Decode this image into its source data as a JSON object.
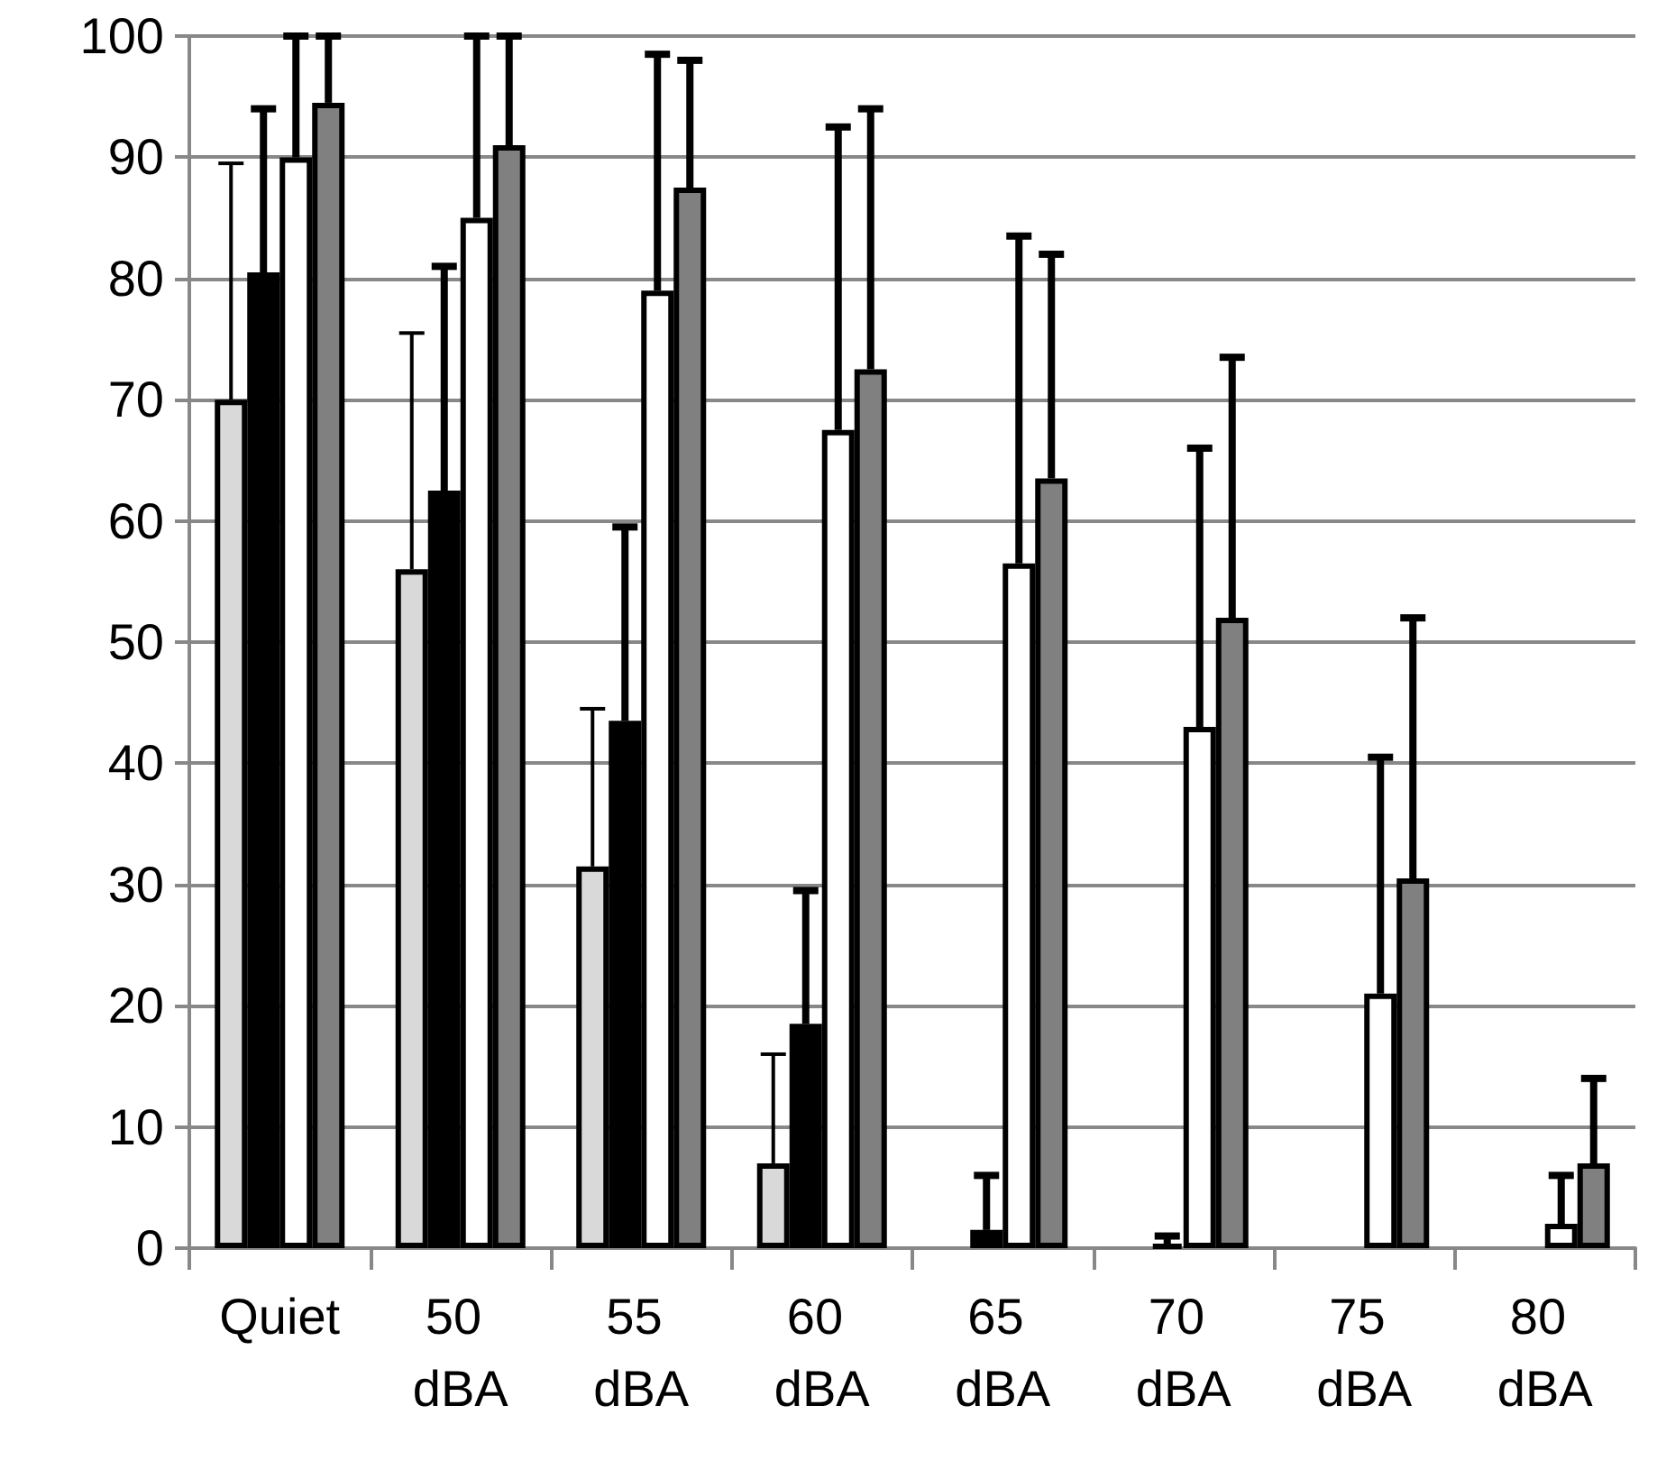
{
  "chart_data": {
    "type": "bar",
    "categories": [
      "Quiet",
      "50 dBA",
      "55 dBA",
      "60 dBA",
      "65 dBA",
      "70 dBA",
      "75 dBA",
      "80 dBA"
    ],
    "series": [
      {
        "color": "#d9d9d9",
        "values": [
          70,
          56,
          31.5,
          7,
          null,
          null,
          null,
          null
        ],
        "errors": [
          [
            70,
            89.5
          ],
          [
            56,
            75.5
          ],
          [
            31.5,
            44.5
          ],
          [
            7,
            16
          ],
          null,
          null,
          null,
          null
        ]
      },
      {
        "color": "#000000",
        "values": [
          80.5,
          62.5,
          43.5,
          18.5,
          1.5,
          0.3,
          null,
          null
        ],
        "errors": [
          [
            80.5,
            94
          ],
          [
            62.5,
            81
          ],
          [
            43.5,
            59.5
          ],
          [
            18.5,
            29.5
          ],
          [
            1.5,
            6
          ],
          [
            0.3,
            1
          ],
          null,
          null
        ]
      },
      {
        "color": "#ffffff",
        "values": [
          90,
          85,
          79,
          67.5,
          56.5,
          43,
          21,
          2
        ],
        "errors": [
          [
            90,
            100
          ],
          [
            85,
            100
          ],
          [
            79,
            98.5
          ],
          [
            67.5,
            92.5
          ],
          [
            56.5,
            83.5
          ],
          [
            43,
            66
          ],
          [
            21,
            40.5
          ],
          [
            2,
            6
          ]
        ]
      },
      {
        "color": "#808080",
        "values": [
          94.5,
          91,
          87.5,
          72.5,
          63.5,
          52,
          30.5,
          7
        ],
        "errors": [
          [
            94.5,
            100
          ],
          [
            91,
            100
          ],
          [
            87.5,
            98
          ],
          [
            72.5,
            94
          ],
          [
            63.5,
            82
          ],
          [
            52,
            73.5
          ],
          [
            30.5,
            52
          ],
          [
            7,
            14
          ]
        ]
      }
    ],
    "ylim": [
      0,
      100
    ],
    "yticks": [
      0,
      10,
      20,
      30,
      40,
      50,
      60,
      70,
      80,
      90,
      100
    ],
    "grid": "y"
  }
}
